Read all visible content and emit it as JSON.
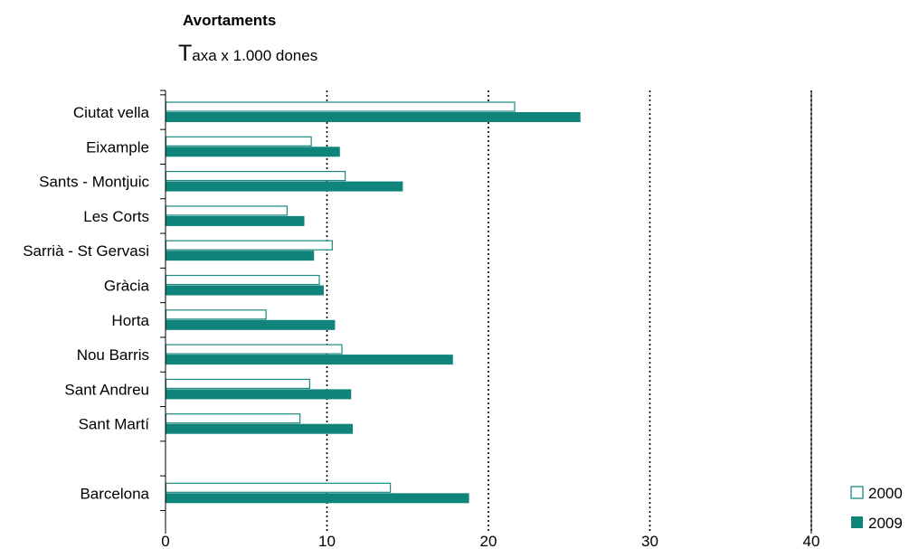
{
  "chart_data": {
    "type": "bar",
    "orientation": "horizontal",
    "title": "Avortaments",
    "subtitle_initial": "T",
    "subtitle_rest": "axa x 1.000 dones",
    "categories": [
      "Ciutat vella",
      "Eixample",
      "Sants - Montjuic",
      "Les Corts",
      "Sarrià - St Gervasi",
      "Gràcia",
      "Horta",
      "Nou Barris",
      "Sant Andreu",
      "Sant Martí",
      "",
      "Barcelona"
    ],
    "series": [
      {
        "name": "2000",
        "style": "outline",
        "color": "#1a8a80",
        "values": [
          21.6,
          9.0,
          11.1,
          7.5,
          10.3,
          9.5,
          6.2,
          10.9,
          8.9,
          8.3,
          null,
          13.9
        ]
      },
      {
        "name": "2009",
        "style": "filled",
        "color": "#0e847a",
        "values": [
          25.7,
          10.8,
          14.7,
          8.6,
          9.2,
          9.8,
          10.5,
          17.8,
          11.5,
          11.6,
          null,
          18.8
        ]
      }
    ],
    "xlim": [
      0,
      40
    ],
    "xticks": [
      "0",
      "10",
      "20",
      "30",
      "40"
    ],
    "grid": "vertical dotted",
    "legend_position": "bottom-right"
  }
}
